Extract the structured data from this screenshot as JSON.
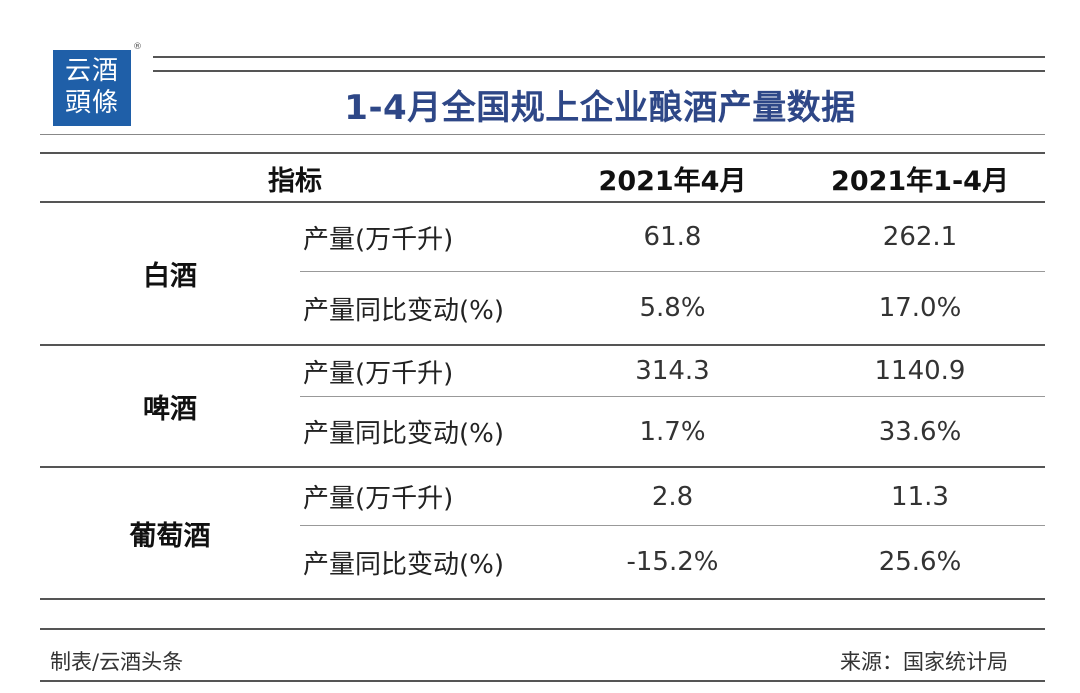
{
  "logo": {
    "line1": "云酒",
    "line2": "頭條",
    "reg_mark": "®"
  },
  "title": "1-4月全国规上企业酿酒产量数据",
  "table": {
    "headers": {
      "indicator": "指标",
      "col1": "2021年4月",
      "col2": "2021年1-4月"
    },
    "groups": [
      {
        "category": "白酒",
        "rows": [
          {
            "indicator": "产量(万千升)",
            "v1": "61.8",
            "v2": "262.1"
          },
          {
            "indicator": "产量同比变动(%)",
            "v1": "5.8%",
            "v2": "17.0%"
          }
        ]
      },
      {
        "category": "啤酒",
        "rows": [
          {
            "indicator": "产量(万千升)",
            "v1": "314.3",
            "v2": "1140.9"
          },
          {
            "indicator": "产量同比变动(%)",
            "v1": "1.7%",
            "v2": "33.6%"
          }
        ]
      },
      {
        "category": "葡萄酒",
        "rows": [
          {
            "indicator": "产量(万千升)",
            "v1": "2.8",
            "v2": "11.3"
          },
          {
            "indicator": "产量同比变动(%)",
            "v1": "-15.2%",
            "v2": "25.6%"
          }
        ]
      }
    ]
  },
  "footer": {
    "left": "制表/云酒头条",
    "right": "来源：国家统计局"
  }
}
